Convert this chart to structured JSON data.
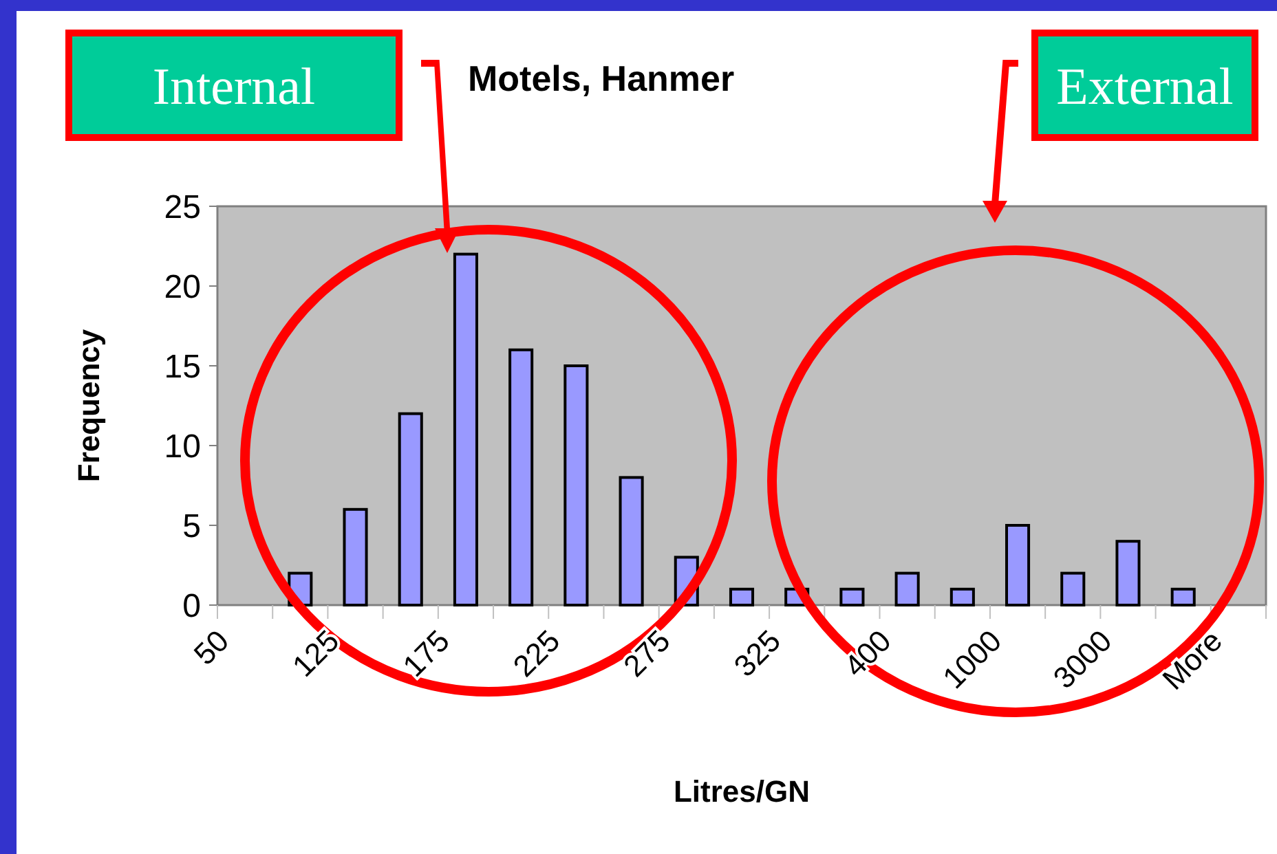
{
  "chart_data": {
    "type": "bar",
    "title": "Motels, Hanmer",
    "xlabel": "Litres/GN",
    "ylabel": "Frequency",
    "categories": [
      "50",
      null,
      "125",
      null,
      "175",
      null,
      "225",
      null,
      "275",
      null,
      "325",
      null,
      "400",
      null,
      "1000",
      null,
      "3000",
      null,
      "More"
    ],
    "values": [
      0,
      2,
      6,
      12,
      22,
      16,
      15,
      8,
      3,
      1,
      1,
      1,
      2,
      1,
      5,
      2,
      4,
      1,
      0
    ],
    "color": "#9999ff",
    "ylim": [
      0,
      25
    ],
    "yticks": [
      0,
      5,
      10,
      15,
      20,
      25
    ],
    "annotations": [
      "Internal",
      "External"
    ]
  }
}
